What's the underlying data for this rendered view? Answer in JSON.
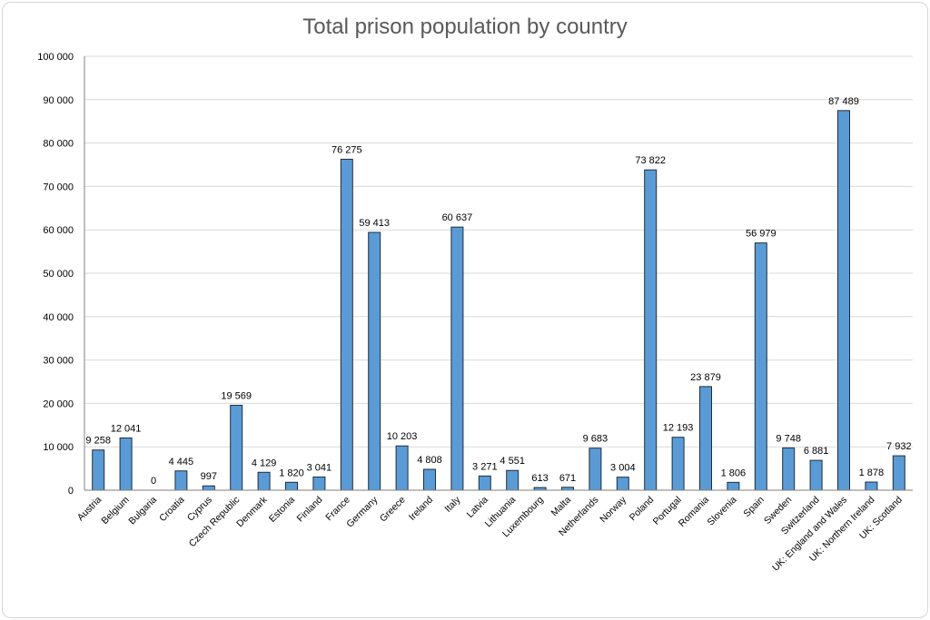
{
  "chart_data": {
    "type": "bar",
    "title": "Total prison population by country",
    "xlabel": "",
    "ylabel": "",
    "ylim": [
      0,
      100000
    ],
    "yticks": [
      0,
      10000,
      20000,
      30000,
      40000,
      50000,
      60000,
      70000,
      80000,
      90000,
      100000
    ],
    "ytick_labels": [
      "0",
      "10 000",
      "20 000",
      "30 000",
      "40 000",
      "50 000",
      "60 000",
      "70 000",
      "80 000",
      "90 000",
      "100 000"
    ],
    "grid": true,
    "legend": "none",
    "bar_color": "#5b9bd5",
    "categories": [
      "Austria",
      "Belgium",
      "Bulgaria",
      "Croatia",
      "Cyprus",
      "Czech Republic",
      "Denmark",
      "Estonia",
      "Finland",
      "France",
      "Germany",
      "Greece",
      "Ireland",
      "Italy",
      "Latvia",
      "Lithuania",
      "Luxembourg",
      "Malta",
      "Netherlands",
      "Norway",
      "Poland",
      "Portugal",
      "Romania",
      "Slovenia",
      "Spain",
      "Sweden",
      "Switzerland",
      "UK: England and Wales",
      "UK: Northern Ireland",
      "UK: Scotland"
    ],
    "values": [
      9258,
      12041,
      0,
      4445,
      997,
      19569,
      4129,
      1820,
      3041,
      76275,
      59413,
      10203,
      4808,
      60637,
      3271,
      4551,
      613,
      671,
      9683,
      3004,
      73822,
      12193,
      23879,
      1806,
      56979,
      9748,
      6881,
      87489,
      1878,
      7932
    ],
    "value_labels": [
      "9 258",
      "12 041",
      "0",
      "4 445",
      "997",
      "19 569",
      "4 129",
      "1 820",
      "3 041",
      "76 275",
      "59 413",
      "10 203",
      "4 808",
      "60 637",
      "3 271",
      "4 551",
      "613",
      "671",
      "9 683",
      "3 004",
      "73 822",
      "12 193",
      "23 879",
      "1 806",
      "56 979",
      "9 748",
      "6 881",
      "87 489",
      "1 878",
      "7 932"
    ]
  }
}
